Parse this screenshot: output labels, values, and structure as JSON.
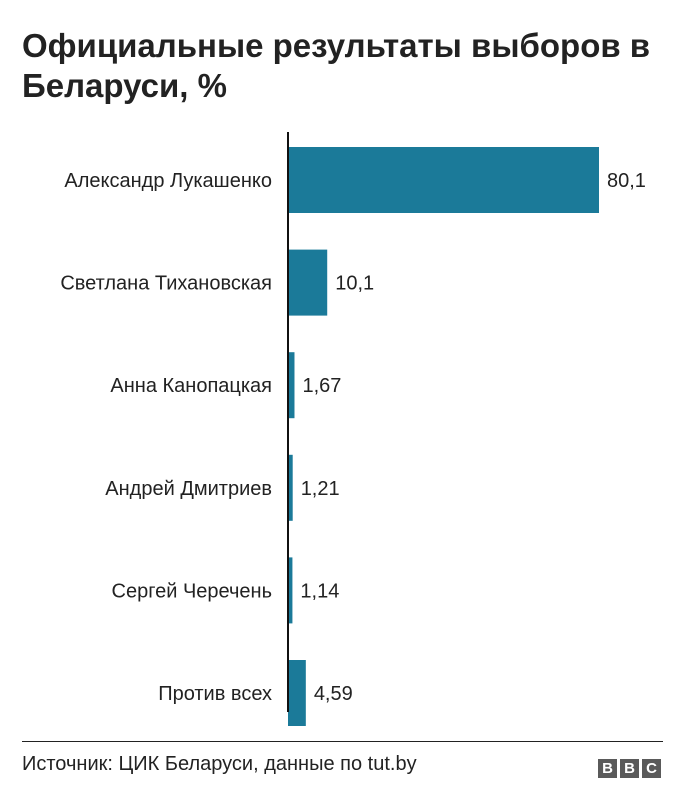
{
  "chart_data": {
    "type": "bar",
    "orientation": "horizontal",
    "title": "Официальные результаты выборов в Беларуси, %",
    "categories": [
      "Александр Лукашенко",
      "Светлана Тихановская",
      "Анна Канопацкая",
      "Андрей Дмитриев",
      "Сергей Черечень",
      "Против всех"
    ],
    "values": [
      80.1,
      10.1,
      1.67,
      1.21,
      1.14,
      4.59
    ],
    "value_labels": [
      "80,1",
      "10,1",
      "1,67",
      "1,21",
      "1,14",
      "4,59"
    ],
    "xlim": [
      0,
      80.1
    ],
    "grid": false,
    "legend": "none",
    "bar_color": "#1b7a99",
    "axis_color": "#111111"
  },
  "footer": {
    "source": "Источник: ЦИК Беларуси, данные по tut.by",
    "logo_letters": [
      "B",
      "B",
      "C"
    ]
  }
}
